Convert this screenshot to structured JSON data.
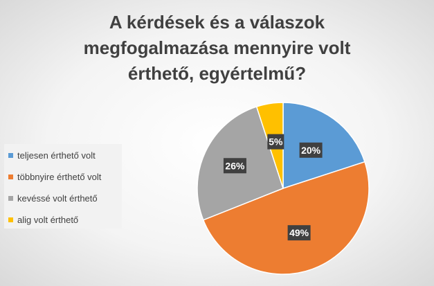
{
  "chart_data": {
    "type": "pie",
    "title_lines": [
      "A kérdések és a válaszok",
      "megfogalmazása mennyire volt",
      "érthető, egyértelmű?"
    ],
    "categories": [
      "teljesen érthető volt",
      "többnyire érthető volt",
      "kevéssé volt érthető",
      "alig volt érthető"
    ],
    "values": [
      20,
      49,
      26,
      5
    ],
    "data_labels": [
      "20%",
      "49%",
      "26%",
      "5%"
    ],
    "colors": [
      "#5b9bd5",
      "#ed7d31",
      "#a5a5a5",
      "#ffc000"
    ],
    "legend_position": "left"
  }
}
